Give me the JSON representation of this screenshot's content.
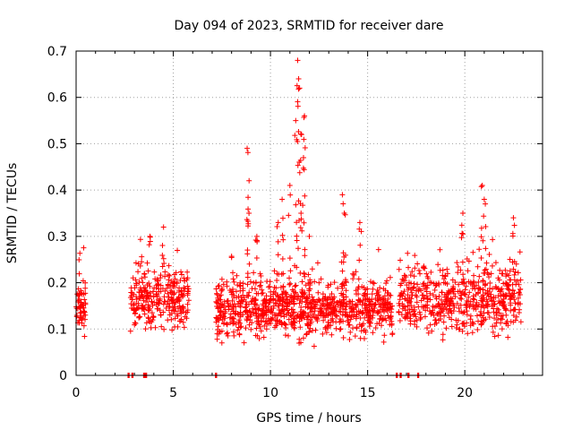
{
  "chart_data": {
    "type": "scatter",
    "title": "Day 094 of 2023, SRMTID for receiver dare",
    "xlabel": "GPS time / hours",
    "ylabel": "SRMTID / TECUs",
    "xlim": [
      0,
      24
    ],
    "ylim": [
      0,
      0.7
    ],
    "xticks": [
      0,
      5,
      10,
      15,
      20
    ],
    "xtick_labels": [
      "0",
      "5",
      "10",
      "15",
      "20"
    ],
    "yticks": [
      0,
      0.1,
      0.2,
      0.3,
      0.4,
      0.5,
      0.6,
      0.7
    ],
    "ytick_labels": [
      "0",
      "0.1",
      "0.2",
      "0.3",
      "0.4",
      "0.5",
      "0.6",
      "0.7"
    ],
    "grid": true,
    "marker": "plus",
    "color": "#ff0000",
    "series": [
      {
        "name": "SRMTID",
        "segments": [
          {
            "start": 0.0,
            "end": 0.5,
            "base": 0.15,
            "spread": 0.05,
            "count": 60
          },
          {
            "start": 2.8,
            "end": 5.8,
            "base": 0.16,
            "spread": 0.06,
            "count": 280
          },
          {
            "start": 7.2,
            "end": 16.3,
            "base": 0.14,
            "spread": 0.05,
            "count": 900
          },
          {
            "start": 16.6,
            "end": 22.9,
            "base": 0.16,
            "spread": 0.06,
            "count": 560
          }
        ],
        "peaks": [
          {
            "x": 8.8,
            "y": 0.49
          },
          {
            "x": 8.9,
            "y": 0.42
          },
          {
            "x": 9.3,
            "y": 0.3
          },
          {
            "x": 10.4,
            "y": 0.33
          },
          {
            "x": 10.6,
            "y": 0.38
          },
          {
            "x": 11.0,
            "y": 0.41
          },
          {
            "x": 11.3,
            "y": 0.55
          },
          {
            "x": 11.4,
            "y": 0.68
          },
          {
            "x": 11.45,
            "y": 0.64
          },
          {
            "x": 11.5,
            "y": 0.62
          },
          {
            "x": 11.6,
            "y": 0.52
          },
          {
            "x": 11.7,
            "y": 0.47
          },
          {
            "x": 11.75,
            "y": 0.56
          },
          {
            "x": 12.0,
            "y": 0.3
          },
          {
            "x": 13.7,
            "y": 0.39
          },
          {
            "x": 13.8,
            "y": 0.35
          },
          {
            "x": 14.6,
            "y": 0.33
          },
          {
            "x": 19.9,
            "y": 0.35
          },
          {
            "x": 20.9,
            "y": 0.41
          },
          {
            "x": 21.0,
            "y": 0.38
          },
          {
            "x": 22.5,
            "y": 0.34
          },
          {
            "x": 4.5,
            "y": 0.32
          },
          {
            "x": 3.8,
            "y": 0.3
          }
        ],
        "zeros": [
          2.7,
          2.9,
          3.5,
          3.6,
          7.2,
          16.5,
          16.7,
          17.1,
          17.6
        ]
      }
    ]
  }
}
